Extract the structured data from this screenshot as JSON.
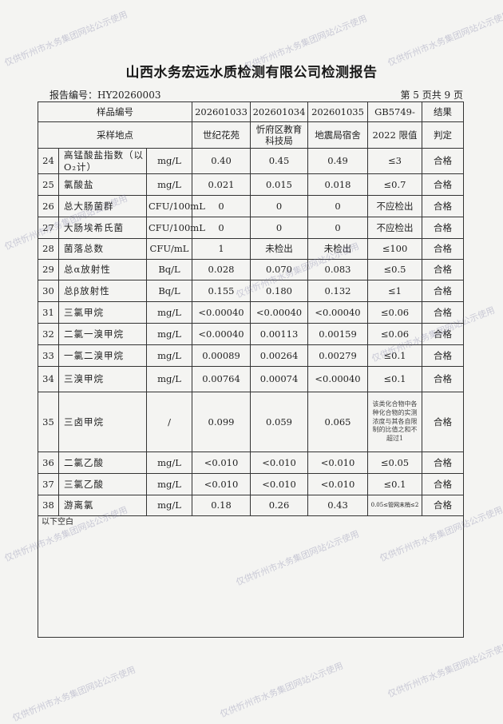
{
  "title": "山西水务宏远水质检测有限公司检测报告",
  "report_no": "报告编号：HY20260003",
  "page_info": "第 5 页共 9 页",
  "header": {
    "sample_no_label": "样品编号",
    "site_label": "采样地点",
    "samples": [
      "202601033",
      "202601034",
      "202601035"
    ],
    "sites": [
      "世纪花苑",
      "忻府区教育科技局",
      "地震局宿舍"
    ],
    "limit_label_1": "GB5749-",
    "limit_label_2": "2022 限值",
    "result_label_1": "结果",
    "result_label_2": "判定"
  },
  "rows": [
    {
      "no": "24",
      "name": "高锰酸盐指数（以O₂计）",
      "unit": "mg/L",
      "v": [
        "0.40",
        "0.45",
        "0.49"
      ],
      "limit": "≤3",
      "result": "合格"
    },
    {
      "no": "25",
      "name": "氯酸盐",
      "unit": "mg/L",
      "v": [
        "0.021",
        "0.015",
        "0.018"
      ],
      "limit": "≤0.7",
      "result": "合格"
    },
    {
      "no": "26",
      "name": "总大肠菌群",
      "unit": "CFU/100mL",
      "v": [
        "0",
        "0",
        "0"
      ],
      "limit": "不应检出",
      "result": "合格"
    },
    {
      "no": "27",
      "name": "大肠埃希氏菌",
      "unit": "CFU/100mL",
      "v": [
        "0",
        "0",
        "0"
      ],
      "limit": "不应检出",
      "result": "合格"
    },
    {
      "no": "28",
      "name": "菌落总数",
      "unit": "CFU/mL",
      "v": [
        "1",
        "未检出",
        "未检出"
      ],
      "limit": "≤100",
      "result": "合格"
    },
    {
      "no": "29",
      "name": "总α放射性",
      "unit": "Bq/L",
      "v": [
        "0.028",
        "0.070",
        "0.083"
      ],
      "limit": "≤0.5",
      "result": "合格"
    },
    {
      "no": "30",
      "name": "总β放射性",
      "unit": "Bq/L",
      "v": [
        "0.155",
        "0.180",
        "0.132"
      ],
      "limit": "≤1",
      "result": "合格"
    },
    {
      "no": "31",
      "name": "三氯甲烷",
      "unit": "mg/L",
      "v": [
        "<0.00040",
        "<0.00040",
        "<0.00040"
      ],
      "limit": "≤0.06",
      "result": "合格"
    },
    {
      "no": "32",
      "name": "二氯一溴甲烷",
      "unit": "mg/L",
      "v": [
        "<0.00040",
        "0.00113",
        "0.00159"
      ],
      "limit": "≤0.06",
      "result": "合格"
    },
    {
      "no": "33",
      "name": "一氯二溴甲烷",
      "unit": "mg/L",
      "v": [
        "0.00089",
        "0.00264",
        "0.00279"
      ],
      "limit": "≤0.1",
      "result": "合格"
    },
    {
      "no": "34",
      "name": "三溴甲烷",
      "unit": "mg/L",
      "v": [
        "0.00764",
        "0.00074",
        "<0.00040"
      ],
      "limit": "≤0.1",
      "result": "合格"
    },
    {
      "no": "35",
      "name": "三卤甲烷",
      "unit": "/",
      "v": [
        "0.099",
        "0.059",
        "0.065"
      ],
      "limit": "该类化合物中各种化合物的实测浓度与其各自限制的比值之和不超过1",
      "result": "合格"
    },
    {
      "no": "36",
      "name": "二氯乙酸",
      "unit": "mg/L",
      "v": [
        "<0.010",
        "<0.010",
        "<0.010"
      ],
      "limit": "≤0.05",
      "result": "合格"
    },
    {
      "no": "37",
      "name": "三氯乙酸",
      "unit": "mg/L",
      "v": [
        "<0.010",
        "<0.010",
        "<0.010"
      ],
      "limit": "≤0.1",
      "result": "合格"
    },
    {
      "no": "38",
      "name": "游离氯",
      "unit": "mg/L",
      "v": [
        "0.18",
        "0.26",
        "0.43"
      ],
      "limit": "0.05≤管网末梢≤2",
      "result": "合格"
    }
  ],
  "blank_note": "以下空白",
  "watermark": "仅供忻州市水务集团网站公示使用"
}
